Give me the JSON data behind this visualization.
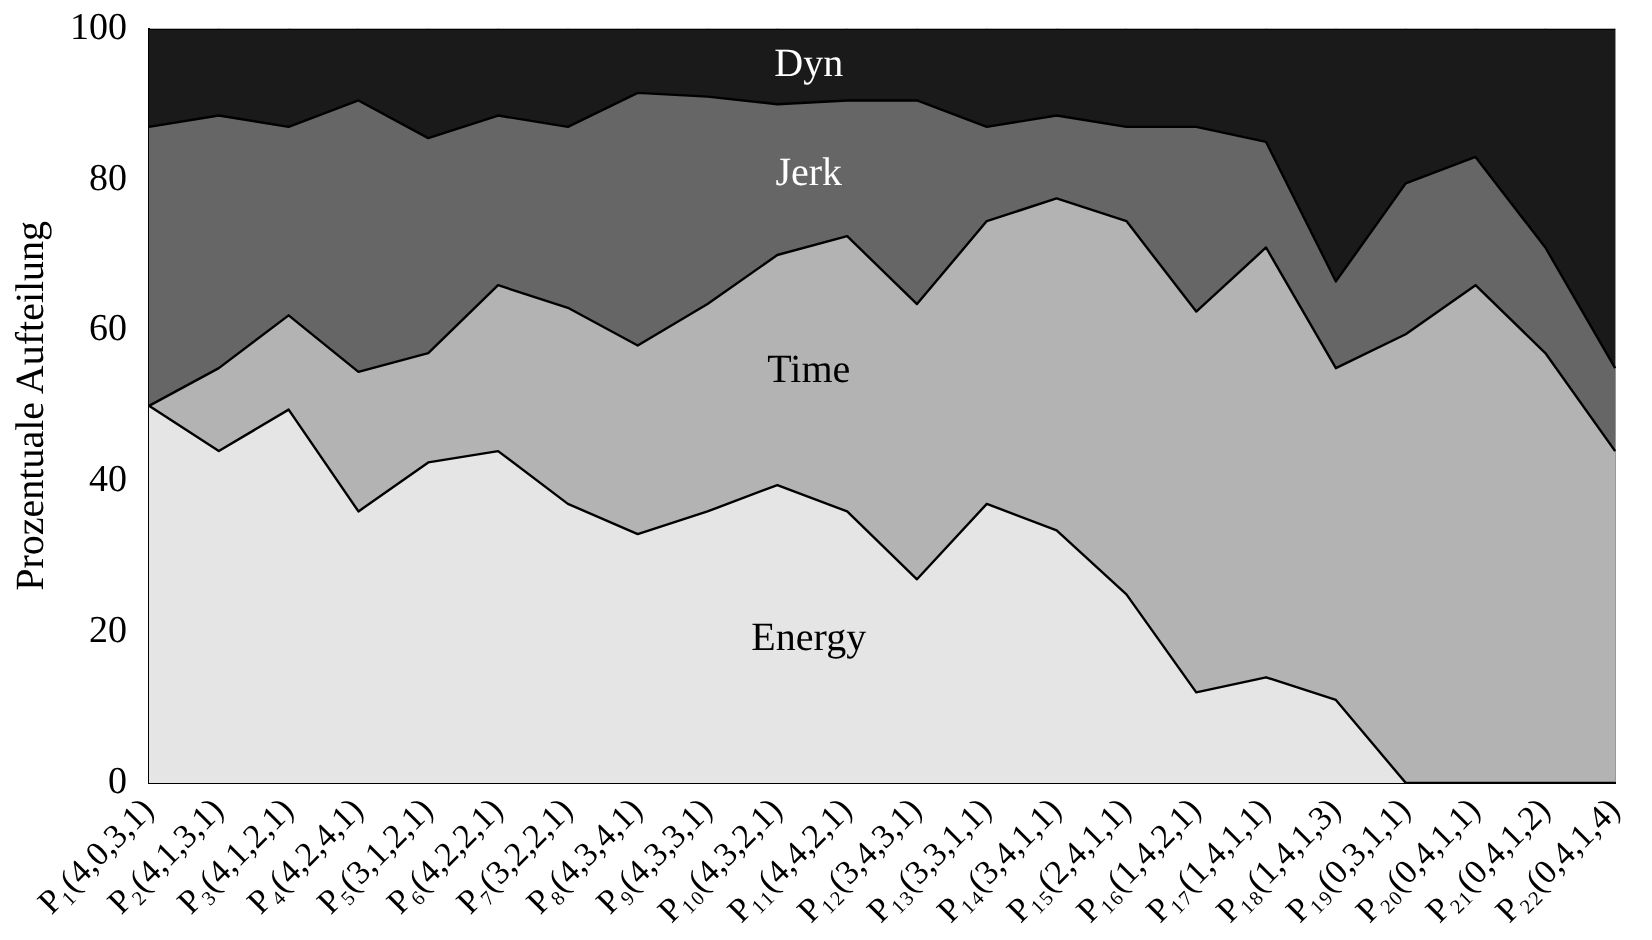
{
  "chart_data": {
    "type": "area",
    "stacked": true,
    "ylabel": "Prozentuale Aufteilung",
    "categories": [
      "P₁(4,0,3,1)",
      "P₂(4,1,3,1)",
      "P₃(4,1,2,1)",
      "P₄(4,2,4,1)",
      "P₅(3,1,2,1)",
      "P₆(4,2,2,1)",
      "P₇(3,2,2,1)",
      "P₈(4,3,4,1)",
      "P₉(4,3,3,1)",
      "P₁₀(4,3,2,1)",
      "P₁₁(4,4,2,1)",
      "P₁₂(3,4,3,1)",
      "P₁₃(3,3,1,1)",
      "P₁₄(3,4,1,1)",
      "P₁₅(2,4,1,1)",
      "P₁₆(1,4,2,1)",
      "P₁₇(1,4,1,1)",
      "P₁₈(1,4,1,3)",
      "P₁₉(0,3,1,1)",
      "P₂₀(0,4,1,1)",
      "P₂₁(0,4,1,2)",
      "P₂₂(0,4,1,4)"
    ],
    "series": [
      {
        "name": "Energy",
        "color": "#e5e5e5",
        "values": [
          50,
          44,
          49.5,
          36,
          42.5,
          44,
          37,
          33,
          36,
          39.5,
          36,
          27,
          37,
          33.5,
          25,
          12,
          14,
          11,
          0,
          0,
          0,
          0
        ]
      },
      {
        "name": "Time",
        "color": "#b3b3b3",
        "values": [
          0,
          11,
          12.5,
          18.5,
          14.5,
          22,
          26,
          25,
          27.5,
          30.5,
          36.5,
          36.5,
          37.5,
          44,
          49.5,
          50.5,
          57,
          44,
          59.5,
          66,
          57,
          44
        ]
      },
      {
        "name": "Jerk",
        "color": "#666666",
        "values": [
          37,
          33.5,
          25,
          36,
          28.5,
          22.5,
          24,
          33.5,
          27.5,
          20,
          18,
          27,
          12.5,
          11,
          12.5,
          24.5,
          14,
          11.5,
          20,
          17,
          14,
          11
        ]
      },
      {
        "name": "Dyn",
        "color": "#1a1a1a",
        "values": [
          13,
          11.5,
          13,
          9.5,
          14.5,
          11.5,
          13,
          8.5,
          9,
          10,
          9.5,
          9.5,
          13,
          11.5,
          13,
          13,
          15,
          33.5,
          20.5,
          17,
          29,
          45
        ]
      }
    ],
    "ylim": [
      0,
      100
    ],
    "yticks": [
      0,
      20,
      40,
      60,
      80,
      100
    ],
    "grid": "x",
    "legend": false
  }
}
